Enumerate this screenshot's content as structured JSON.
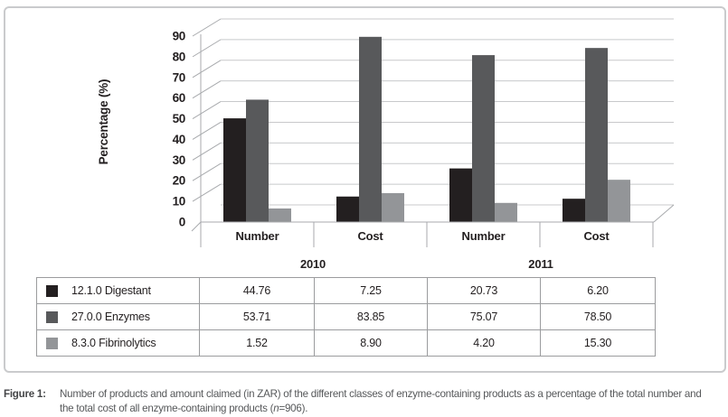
{
  "figure": {
    "caption_label": "Figure 1:",
    "caption_line1": "Number of products and amount claimed (in ZAR) of the different classes of enzyme-containing products as a percentage of the total number and",
    "caption_line2_pre": "the total cost of all enzyme-containing products (",
    "caption_n": "n",
    "caption_line2_post": "=906)."
  },
  "chart_data": {
    "type": "bar",
    "title": "",
    "ylabel": "Percentage (%)",
    "xlabel": "",
    "ylim": [
      0,
      90
    ],
    "ytick_step": 10,
    "grid": true,
    "legend_position": "table-below-left-column",
    "categories": [
      "Number",
      "Cost",
      "Number",
      "Cost"
    ],
    "group_labels": [
      "2010",
      "2011"
    ],
    "series": [
      {
        "name": "12.1.0 Digestant",
        "color": "#231f20",
        "values": [
          "44.76",
          "7.25",
          "20.73",
          "6.20"
        ]
      },
      {
        "name": "27.0.0 Enzymes",
        "color": "#58595b",
        "values": [
          "53.71",
          "83.85",
          "75.07",
          "78.50"
        ]
      },
      {
        "name": "8.3.0 Fibrinolytics",
        "color": "#939598",
        "values": [
          "1.52",
          "8.90",
          "4.20",
          "15.30"
        ]
      }
    ]
  },
  "colors": {
    "grid_line": "#c8c9cb",
    "axis_line": "#a8aaad",
    "table_border": "#9b9c9e",
    "text": "#231f20",
    "caption_text": "#56585a",
    "figure_border": "#cacbcd"
  }
}
